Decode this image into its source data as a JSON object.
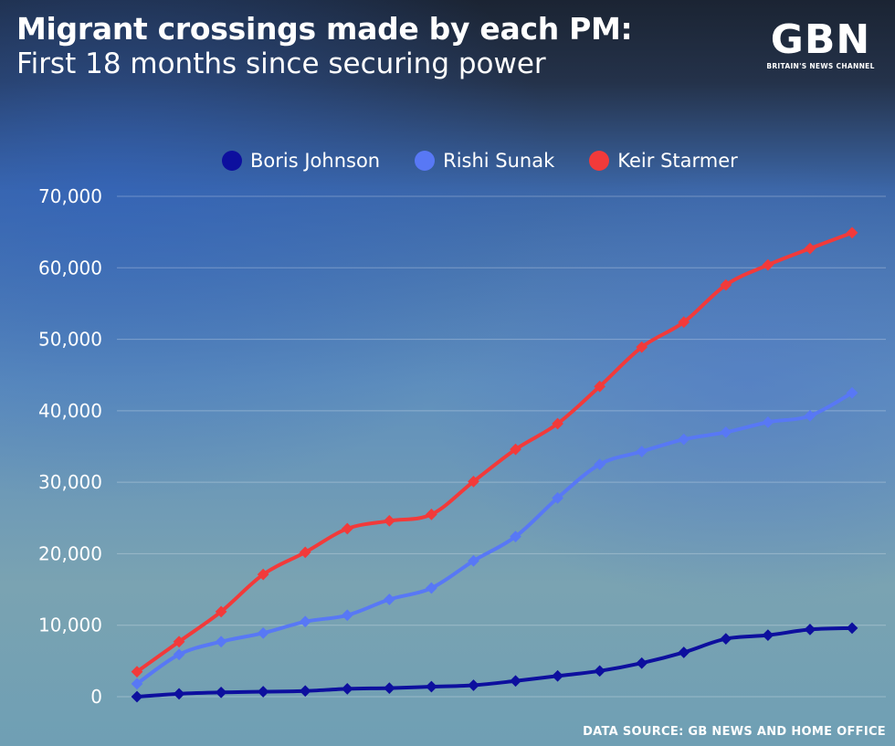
{
  "header": {
    "title": "Migrant crossings made by each PM:",
    "subtitle": "First 18 months since securing power"
  },
  "logo": {
    "mark": "GBN",
    "tagline": "BRITAIN'S NEWS CHANNEL"
  },
  "footer": {
    "source": "DATA SOURCE: GB NEWS AND HOME OFFICE"
  },
  "chart_data": {
    "type": "line",
    "title": "Migrant crossings made by each PM:",
    "subtitle": "First 18 months since securing power",
    "xlabel": "",
    "ylabel": "",
    "x": [
      1,
      2,
      3,
      4,
      5,
      6,
      7,
      8,
      9,
      10,
      11,
      12,
      13,
      14,
      15,
      16,
      17,
      18
    ],
    "ylim": [
      0,
      70000
    ],
    "yticks": [
      "0",
      "10,000",
      "20,000",
      "30,000",
      "40,000",
      "50,000",
      "60,000",
      "70,000"
    ],
    "ytick_values": [
      0,
      10000,
      20000,
      30000,
      40000,
      50000,
      60000,
      70000
    ],
    "grid": true,
    "legend": "top",
    "series": [
      {
        "name": "Boris Johnson",
        "color": "#0d0f9e",
        "values": [
          0,
          400,
          600,
          700,
          800,
          1100,
          1200,
          1400,
          1600,
          2200,
          2900,
          3600,
          4700,
          6200,
          8100,
          8600,
          9400,
          9600
        ]
      },
      {
        "name": "Rishi Sunak",
        "color": "#5878f5",
        "values": [
          1800,
          5900,
          7700,
          8900,
          10500,
          11400,
          13600,
          15200,
          19000,
          22400,
          27800,
          32500,
          34300,
          36000,
          37000,
          38400,
          39300,
          42500
        ]
      },
      {
        "name": "Keir Starmer",
        "color": "#f23a3a",
        "values": [
          3500,
          7700,
          11900,
          17100,
          20200,
          23500,
          24600,
          25500,
          30100,
          34600,
          38200,
          43400,
          48900,
          52400,
          57600,
          60400,
          62700,
          64900
        ]
      }
    ]
  }
}
